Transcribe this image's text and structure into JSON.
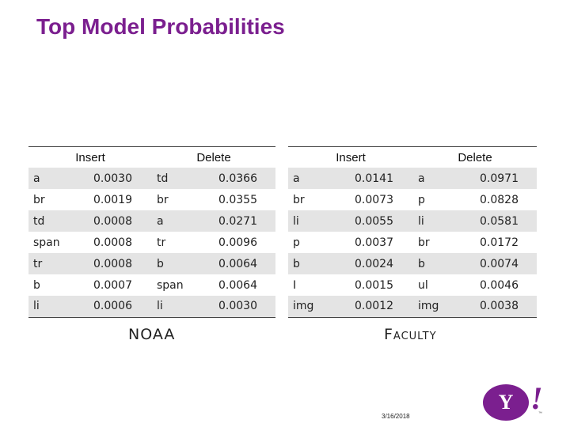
{
  "slide": {
    "title": "Top Model Probabilities",
    "date": "3/16/2018",
    "logo_text": "Y",
    "logo_bang": "!",
    "logo_tm": "™",
    "brand_color": "#7b1f8f"
  },
  "tables": [
    {
      "caption": "NOAA",
      "headers": [
        "Insert",
        "Delete"
      ],
      "rows": [
        [
          "a",
          "0.0030",
          "td",
          "0.0366"
        ],
        [
          "br",
          "0.0019",
          "br",
          "0.0355"
        ],
        [
          "td",
          "0.0008",
          "a",
          "0.0271"
        ],
        [
          "span",
          "0.0008",
          "tr",
          "0.0096"
        ],
        [
          "tr",
          "0.0008",
          "b",
          "0.0064"
        ],
        [
          "b",
          "0.0007",
          "span",
          "0.0064"
        ],
        [
          "li",
          "0.0006",
          "li",
          "0.0030"
        ]
      ]
    },
    {
      "caption": "Faculty",
      "headers": [
        "Insert",
        "Delete"
      ],
      "rows": [
        [
          "a",
          "0.0141",
          "a",
          "0.0971"
        ],
        [
          "br",
          "0.0073",
          "p",
          "0.0828"
        ],
        [
          "li",
          "0.0055",
          "li",
          "0.0581"
        ],
        [
          "p",
          "0.0037",
          "br",
          "0.0172"
        ],
        [
          "b",
          "0.0024",
          "b",
          "0.0074"
        ],
        [
          "I",
          "0.0015",
          "ul",
          "0.0046"
        ],
        [
          "img",
          "0.0012",
          "img",
          "0.0038"
        ]
      ]
    }
  ]
}
